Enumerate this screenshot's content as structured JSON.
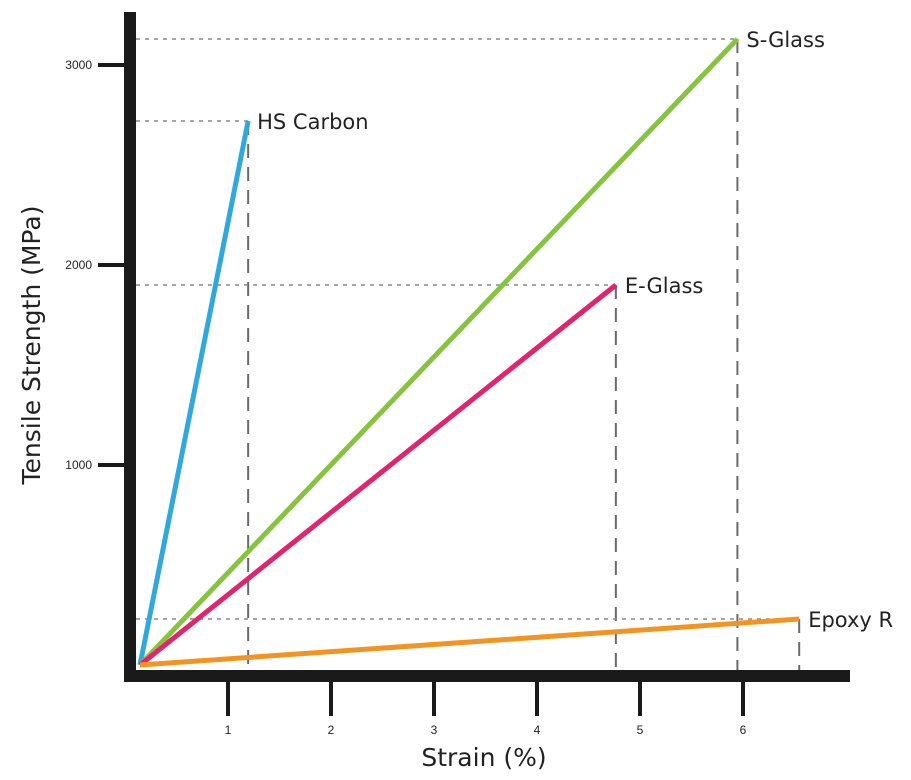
{
  "chart_data": {
    "type": "line",
    "title": "",
    "xlabel": "Strain (%)",
    "ylabel": "Tensile Strength (MPa)",
    "xlim": [
      0,
      6.7
    ],
    "ylim": [
      0,
      3200
    ],
    "x_ticks": [
      1,
      2,
      3,
      4,
      5,
      6
    ],
    "y_ticks": [
      1000,
      2000,
      3000
    ],
    "x_tick_labels": [
      "1",
      "2",
      "3",
      "4",
      "5",
      "6"
    ],
    "y_tick_labels": [
      "1000",
      "2000",
      "3000"
    ],
    "grid": false,
    "legend": "none",
    "series": [
      {
        "name": "HS Carbon",
        "color": "#2fa8dc",
        "points": [
          [
            0,
            0
          ],
          [
            1.05,
            2720
          ]
        ]
      },
      {
        "name": "S-Glass",
        "color": "#86c440",
        "points": [
          [
            0,
            0
          ],
          [
            5.8,
            3130
          ]
        ]
      },
      {
        "name": "E-Glass",
        "color": "#e0256e",
        "points": [
          [
            0,
            0
          ],
          [
            4.62,
            1900
          ]
        ]
      },
      {
        "name": "Epoxy R",
        "color": "#f39421",
        "points": [
          [
            0,
            0
          ],
          [
            6.4,
            230
          ]
        ]
      }
    ]
  }
}
